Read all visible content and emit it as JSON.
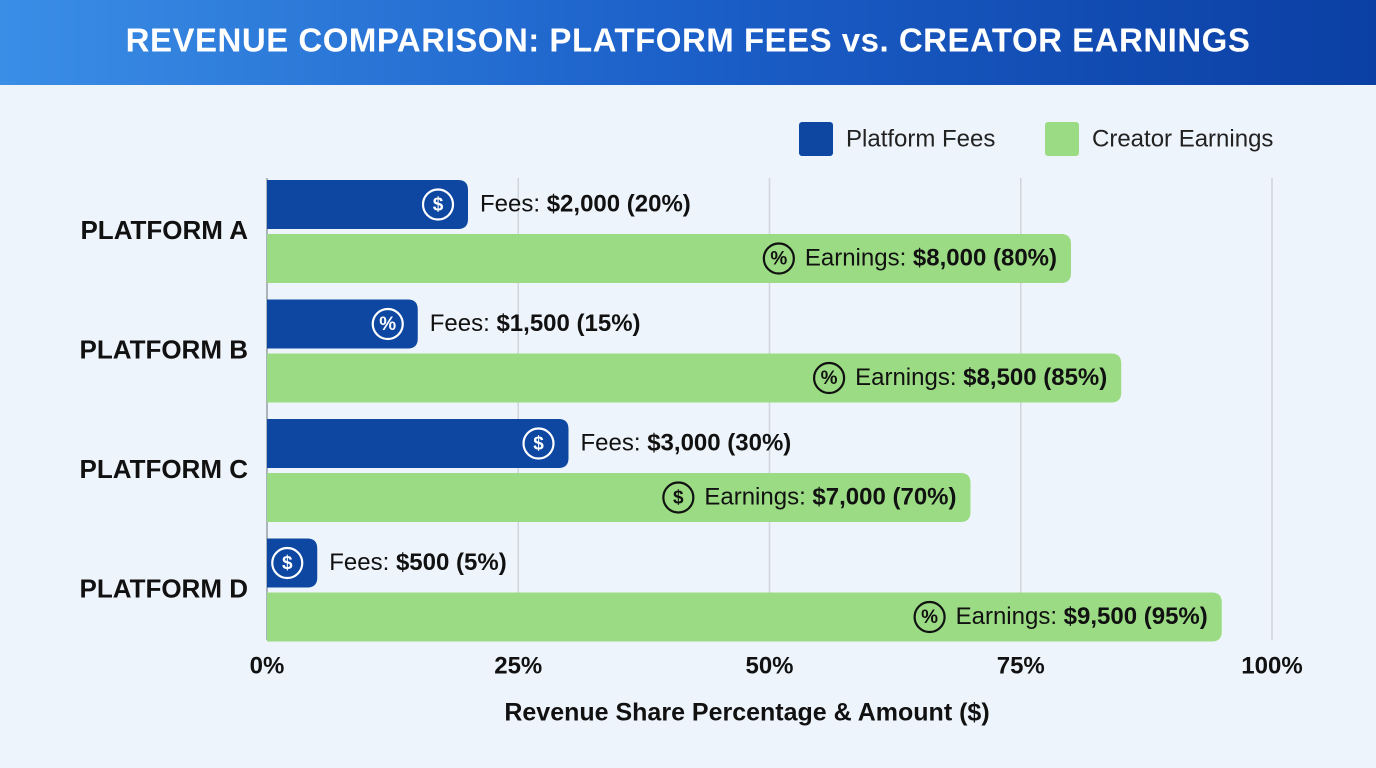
{
  "chart_data": {
    "type": "hbar",
    "title": "REVENUE COMPARISON: PLATFORM FEES vs. CREATOR EARNINGS",
    "x_label": "Revenue Share Percentage & Amount ($)",
    "categories": [
      "PLATFORM A",
      "PLATFORM B",
      "PLATFORM C",
      "PLATFORM D"
    ],
    "series": [
      {
        "name": "Platform Fees",
        "color": "#0d47a1",
        "label_prefix": "Fees:",
        "values": [
          20,
          15,
          30,
          5
        ],
        "value_labels": [
          "$2,000 (20%)",
          "$1,500 (15%)",
          "$3,000 (30%)",
          "$500 (5%)"
        ],
        "icons": [
          "$",
          "%",
          "$",
          "$"
        ]
      },
      {
        "name": "Creator Earnings",
        "color": "#9bdb84",
        "label_prefix": "Earnings:",
        "values": [
          80,
          85,
          70,
          95
        ],
        "value_labels": [
          "$8,000 (80%)",
          "$8,500 (85%)",
          "$7,000 (70%)",
          "$9,500 (95%)"
        ],
        "icons": [
          "%",
          "%",
          "$",
          "%"
        ]
      }
    ],
    "xlim": [
      0,
      100
    ],
    "xticks": [
      {
        "value": 0,
        "label": "0%"
      },
      {
        "value": 25,
        "label": "25%"
      },
      {
        "value": 50,
        "label": "50%"
      },
      {
        "value": 75,
        "label": "75%"
      },
      {
        "value": 100,
        "label": "100%"
      }
    ],
    "grid": true,
    "legend_position": "top-right"
  }
}
